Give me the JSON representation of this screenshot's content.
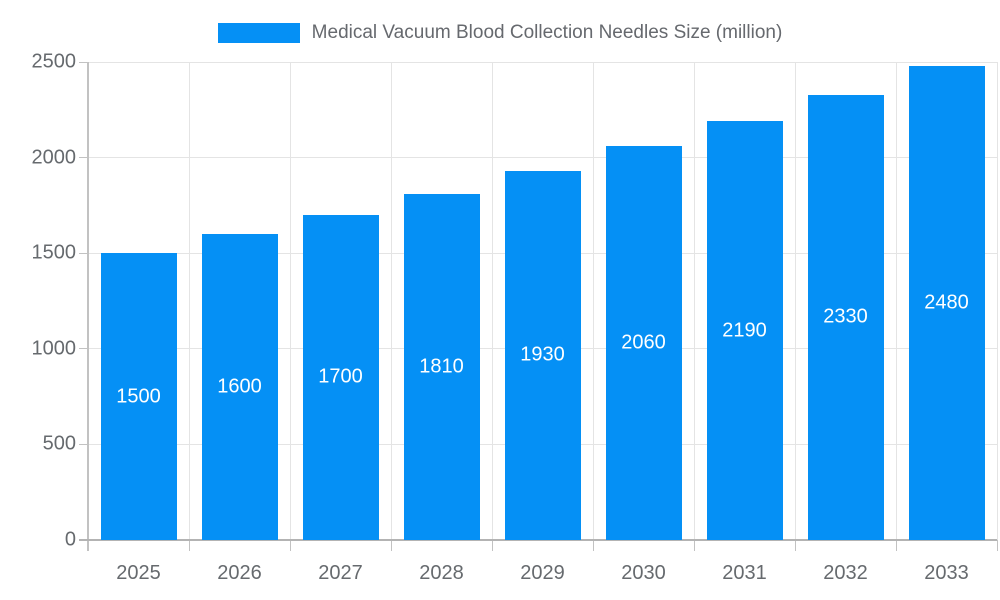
{
  "chart_data": {
    "type": "bar",
    "title": "Medical Vacuum Blood Collection Needles Size (million)",
    "categories": [
      "2025",
      "2026",
      "2027",
      "2028",
      "2029",
      "2030",
      "2031",
      "2032",
      "2033"
    ],
    "values": [
      1500,
      1600,
      1700,
      1810,
      1930,
      2060,
      2190,
      2330,
      2480
    ],
    "value_labels": [
      "1500",
      "1600",
      "1700",
      "1810",
      "1930",
      "2060",
      "2190",
      "2330",
      "2480"
    ],
    "xlabel": "",
    "ylabel": "",
    "ylim": [
      0,
      2500
    ],
    "yticks": [
      0,
      500,
      1000,
      1500,
      2000,
      2500
    ],
    "ytick_labels": [
      "0",
      "500",
      "1000",
      "1500",
      "2000",
      "2500"
    ],
    "grid": true,
    "legend_position": "top",
    "colors": {
      "bar": "#0590f5",
      "bar_label": "#ffffff",
      "axis_text": "#666a6e",
      "grid_line": "#e4e4e4",
      "axis_line": "#b3b3b3",
      "legend_text": "#66696e",
      "background": "#ffffff"
    }
  }
}
